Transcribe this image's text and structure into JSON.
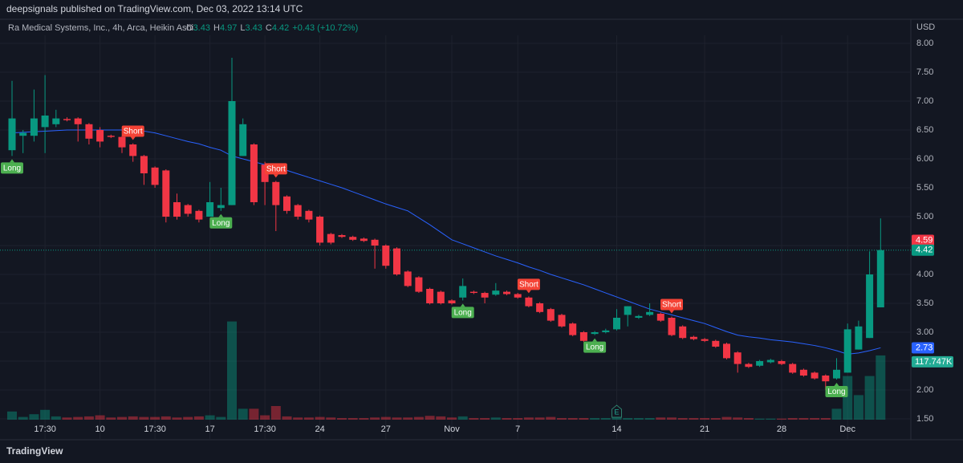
{
  "header": {
    "text": "deepsignals published on TradingView.com, Dec 03, 2022 13:14 UTC"
  },
  "footer": {
    "brand": "TradingView"
  },
  "chart_data": {
    "type": "candlestick",
    "title": "Ra Medical Systems, Inc., 4h, Arca, Heikin Ashi",
    "ohlc_legend": [
      {
        "label": "O",
        "value": "3.43"
      },
      {
        "label": "H",
        "value": "4.97"
      },
      {
        "label": "L",
        "value": "3.43"
      },
      {
        "label": "C",
        "value": "4.42"
      }
    ],
    "change": "+0.43 (+10.72%)",
    "currency": "USD",
    "earnings_marker": "E",
    "up_color": "#089981",
    "down_color": "#f23645",
    "ma_color": "#2962ff",
    "ylim": [
      1.4,
      8.35
    ],
    "yticks": [
      {
        "value": 1.5,
        "label": "1.50"
      },
      {
        "value": 2,
        "label": "2.00"
      },
      {
        "value": 2.5,
        "label": "2.50"
      },
      {
        "value": 3,
        "label": "3.00"
      },
      {
        "value": 3.5,
        "label": "3.50"
      },
      {
        "value": 4,
        "label": "4.00"
      },
      {
        "value": 4.5,
        "label": "4.50"
      },
      {
        "value": 5,
        "label": "5.00"
      },
      {
        "value": 5.5,
        "label": "5.50"
      },
      {
        "value": 6,
        "label": "6.00"
      },
      {
        "value": 6.5,
        "label": "6.50"
      },
      {
        "value": 7,
        "label": "7.00"
      },
      {
        "value": 7.5,
        "label": "7.50"
      },
      {
        "value": 8,
        "label": "8.00"
      }
    ],
    "grid": true,
    "categories": [
      null,
      null,
      null,
      "17:30",
      null,
      null,
      null,
      null,
      "10",
      null,
      null,
      null,
      null,
      "17:30",
      null,
      null,
      null,
      null,
      "17",
      null,
      null,
      null,
      null,
      "17:30",
      null,
      null,
      null,
      null,
      "24",
      null,
      null,
      null,
      null,
      null,
      "27",
      null,
      null,
      null,
      null,
      null,
      "Nov",
      null,
      null,
      null,
      null,
      null,
      "7",
      null,
      null,
      null,
      null,
      null,
      null,
      null,
      null,
      "14",
      null,
      null,
      null,
      null,
      null,
      null,
      null,
      "21",
      null,
      null,
      null,
      null,
      null,
      null,
      "28",
      null,
      null,
      null,
      null,
      null,
      "Dec",
      null,
      null,
      null
    ],
    "open": [
      6.15,
      6.4,
      6.4,
      6.55,
      6.6,
      6.69,
      6.7,
      6.6,
      6.5,
      6.4,
      6.38,
      6.25,
      6.05,
      5.85,
      5.8,
      5.25,
      5.2,
      5.1,
      5.0,
      5.15,
      5.2,
      6.05,
      6.25,
      5.9,
      5.6,
      5.35,
      5.2,
      5.1,
      5.0,
      4.7,
      4.68,
      4.65,
      4.62,
      4.6,
      4.5,
      4.45,
      4.05,
      3.95,
      3.75,
      3.7,
      3.55,
      3.6,
      3.7,
      3.68,
      3.65,
      3.7,
      3.66,
      3.6,
      3.5,
      3.4,
      3.3,
      3.15,
      3.0,
      2.97,
      3.0,
      3.05,
      3.3,
      3.25,
      3.3,
      3.32,
      3.25,
      3.1,
      2.92,
      2.88,
      2.85,
      2.8,
      2.65,
      2.45,
      2.42,
      2.48,
      2.5,
      2.45,
      2.35,
      2.3,
      2.25,
      2.2,
      2.3,
      2.7,
      2.9,
      3.43
    ],
    "high": [
      7.35,
      6.5,
      7.2,
      7.45,
      6.85,
      6.72,
      6.72,
      6.62,
      6.55,
      6.42,
      6.4,
      6.27,
      6.07,
      5.87,
      5.82,
      5.4,
      5.22,
      5.12,
      5.6,
      5.5,
      7.75,
      6.7,
      6.27,
      5.95,
      5.62,
      5.37,
      5.22,
      5.12,
      5.02,
      4.72,
      4.7,
      4.67,
      4.64,
      4.62,
      4.52,
      4.47,
      4.07,
      3.97,
      3.77,
      3.72,
      3.57,
      3.93,
      3.72,
      3.7,
      3.85,
      3.72,
      3.68,
      3.62,
      3.52,
      3.42,
      3.32,
      3.17,
      3.02,
      3.02,
      3.06,
      3.4,
      3.45,
      3.3,
      3.5,
      3.34,
      3.27,
      3.12,
      2.94,
      2.9,
      2.87,
      2.82,
      2.67,
      2.47,
      2.52,
      2.54,
      2.52,
      2.47,
      2.37,
      2.32,
      2.27,
      2.55,
      3.15,
      3.2,
      4.4,
      4.97
    ],
    "low": [
      6.05,
      6.1,
      6.3,
      6.1,
      6.55,
      6.65,
      6.3,
      6.25,
      6.2,
      6.36,
      6.1,
      5.95,
      5.55,
      5.5,
      4.9,
      4.95,
      5.0,
      4.9,
      5.0,
      5.1,
      5.2,
      6.05,
      5.2,
      5.2,
      4.75,
      5.05,
      4.95,
      4.9,
      4.5,
      4.52,
      4.63,
      4.58,
      4.56,
      4.1,
      4.1,
      3.98,
      3.78,
      3.68,
      3.48,
      3.48,
      3.48,
      3.55,
      3.66,
      3.5,
      3.63,
      3.64,
      3.58,
      3.43,
      3.33,
      3.18,
      3.08,
      2.93,
      2.83,
      2.95,
      2.98,
      3.03,
      3.1,
      3.23,
      3.28,
      3.18,
      2.93,
      2.88,
      2.86,
      2.83,
      2.73,
      2.53,
      2.3,
      2.38,
      2.4,
      2.46,
      2.43,
      2.28,
      2.23,
      2.18,
      2.0,
      2.18,
      2.3,
      2.7,
      2.9,
      3.43
    ],
    "close": [
      6.7,
      6.45,
      6.7,
      6.75,
      6.7,
      6.67,
      6.6,
      6.35,
      6.3,
      6.38,
      6.2,
      6.05,
      5.75,
      5.55,
      5.0,
      5.0,
      5.05,
      4.95,
      5.25,
      5.2,
      7.0,
      6.6,
      5.25,
      5.6,
      5.2,
      5.1,
      5.0,
      4.95,
      4.55,
      4.55,
      4.65,
      4.6,
      4.58,
      4.5,
      4.15,
      4.0,
      3.8,
      3.7,
      3.5,
      3.5,
      3.5,
      3.8,
      3.68,
      3.6,
      3.72,
      3.66,
      3.6,
      3.45,
      3.35,
      3.2,
      3.1,
      2.95,
      2.85,
      3.0,
      3.03,
      3.25,
      3.45,
      3.28,
      3.35,
      3.2,
      2.95,
      2.9,
      2.88,
      2.85,
      2.75,
      2.55,
      2.45,
      2.4,
      2.5,
      2.52,
      2.45,
      2.3,
      2.25,
      2.2,
      2.15,
      2.35,
      3.05,
      3.1,
      4.0,
      4.42
    ],
    "ma": [
      6.45,
      6.46,
      6.47,
      6.48,
      6.49,
      6.5,
      6.5,
      6.5,
      6.5,
      6.5,
      6.5,
      6.49,
      6.48,
      6.45,
      6.4,
      6.35,
      6.3,
      6.26,
      6.2,
      6.15,
      6.05,
      6.0,
      5.95,
      5.9,
      5.85,
      5.8,
      5.74,
      5.68,
      5.62,
      5.56,
      5.5,
      5.43,
      5.36,
      5.29,
      5.22,
      5.16,
      5.1,
      4.98,
      4.86,
      4.73,
      4.6,
      4.53,
      4.46,
      4.39,
      4.32,
      4.26,
      4.2,
      4.13,
      4.07,
      4.0,
      3.94,
      3.88,
      3.82,
      3.75,
      3.68,
      3.61,
      3.54,
      3.47,
      3.4,
      3.35,
      3.3,
      3.25,
      3.2,
      3.15,
      3.08,
      3.01,
      2.95,
      2.92,
      2.9,
      2.87,
      2.85,
      2.83,
      2.8,
      2.77,
      2.73,
      2.68,
      2.62,
      2.64,
      2.68,
      2.73
    ],
    "volume": [
      15000,
      5000,
      10000,
      18000,
      6000,
      4000,
      5000,
      6000,
      8000,
      4000,
      5000,
      6000,
      5000,
      5000,
      6000,
      4000,
      5000,
      6000,
      8000,
      5000,
      180000,
      20000,
      20000,
      8000,
      25000,
      6000,
      4000,
      4000,
      5000,
      4000,
      3000,
      3000,
      3000,
      4000,
      5000,
      4000,
      4000,
      5000,
      7000,
      6000,
      4000,
      6000,
      3000,
      3000,
      4000,
      3000,
      3000,
      4000,
      4000,
      5000,
      3000,
      3000,
      3000,
      3000,
      3000,
      4000,
      3000,
      3000,
      3000,
      4000,
      4000,
      3000,
      3000,
      3000,
      3000,
      5000,
      4000,
      3000,
      2000,
      2000,
      2000,
      3000,
      3000,
      3000,
      3000,
      20000,
      80000,
      45000,
      80000,
      117747
    ],
    "signals": [
      "Long",
      null,
      null,
      null,
      null,
      null,
      null,
      null,
      null,
      null,
      null,
      "Short",
      null,
      null,
      null,
      null,
      null,
      null,
      null,
      "Long",
      null,
      null,
      null,
      null,
      "Short",
      null,
      null,
      null,
      null,
      null,
      null,
      null,
      null,
      null,
      null,
      null,
      null,
      null,
      null,
      null,
      null,
      "Long",
      null,
      null,
      null,
      null,
      null,
      "Short",
      null,
      null,
      null,
      null,
      null,
      "Long",
      null,
      null,
      null,
      null,
      null,
      null,
      "Short",
      null,
      null,
      null,
      null,
      null,
      null,
      null,
      null,
      null,
      null,
      null,
      null,
      null,
      null,
      "Long",
      null,
      null,
      null,
      null
    ],
    "price_badges": [
      {
        "value": 4.59,
        "label": "4.59",
        "color": "#f23645"
      },
      {
        "value": 4.42,
        "label": "4.42",
        "color": "#089981"
      },
      {
        "value": 2.73,
        "label": "2.73",
        "color": "#2962ff"
      }
    ],
    "volume_badge": {
      "value": 117747,
      "label": "117.747K",
      "color": "#22ab94"
    }
  }
}
